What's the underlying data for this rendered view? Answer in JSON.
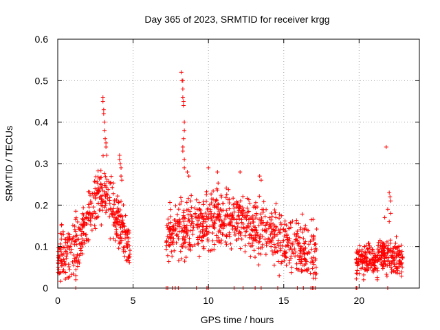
{
  "chart_data": {
    "type": "scatter",
    "title": "Day 365 of 2023, SRMTID for receiver krgg",
    "xlabel": "GPS time / hours",
    "ylabel": "SRMTID / TECUs",
    "xlim": [
      0,
      24
    ],
    "ylim": [
      0,
      0.6
    ],
    "xticks": [
      0,
      5,
      10,
      15,
      20
    ],
    "yticks": [
      0,
      0.1,
      0.2,
      0.3,
      0.4,
      0.5,
      0.6
    ],
    "grid": true,
    "marker": "+",
    "colors": {
      "points": "#ff0000",
      "grid": "#a0a0a0",
      "frame": "#000000"
    },
    "segments": [
      {
        "x_start": 0.0,
        "x_end": 4.8,
        "profile": [
          [
            0.0,
            0.08
          ],
          [
            0.6,
            0.08
          ],
          [
            1.2,
            0.1
          ],
          [
            1.8,
            0.14
          ],
          [
            2.4,
            0.2
          ],
          [
            3.0,
            0.24
          ],
          [
            3.6,
            0.2
          ],
          [
            4.2,
            0.15
          ],
          [
            4.8,
            0.09
          ]
        ],
        "spread": 0.05,
        "count": 420
      },
      {
        "x_start": 7.2,
        "x_end": 17.2,
        "profile": [
          [
            7.2,
            0.12
          ],
          [
            8.0,
            0.14
          ],
          [
            9.0,
            0.15
          ],
          [
            10.0,
            0.16
          ],
          [
            11.0,
            0.17
          ],
          [
            12.0,
            0.16
          ],
          [
            13.0,
            0.15
          ],
          [
            14.0,
            0.13
          ],
          [
            15.0,
            0.12
          ],
          [
            16.0,
            0.1
          ],
          [
            17.2,
            0.08
          ]
        ],
        "spread": 0.05,
        "count": 780
      },
      {
        "x_start": 19.8,
        "x_end": 22.9,
        "profile": [
          [
            19.8,
            0.06
          ],
          [
            20.5,
            0.07
          ],
          [
            21.0,
            0.07
          ],
          [
            21.5,
            0.08
          ],
          [
            22.0,
            0.08
          ],
          [
            22.9,
            0.07
          ]
        ],
        "spread": 0.03,
        "count": 300
      }
    ],
    "extra_points": [
      [
        3.0,
        0.46
      ],
      [
        3.0,
        0.45
      ],
      [
        3.05,
        0.43
      ],
      [
        3.05,
        0.42
      ],
      [
        3.1,
        0.4
      ],
      [
        3.1,
        0.38
      ],
      [
        3.15,
        0.36
      ],
      [
        3.2,
        0.35
      ],
      [
        3.2,
        0.34
      ],
      [
        3.25,
        0.32
      ],
      [
        4.1,
        0.32
      ],
      [
        4.1,
        0.31
      ],
      [
        4.15,
        0.3
      ],
      [
        4.2,
        0.29
      ],
      [
        4.2,
        0.27
      ],
      [
        4.25,
        0.26
      ],
      [
        8.2,
        0.52
      ],
      [
        8.25,
        0.5
      ],
      [
        8.3,
        0.5
      ],
      [
        8.3,
        0.48
      ],
      [
        8.3,
        0.46
      ],
      [
        8.35,
        0.45
      ],
      [
        8.35,
        0.44
      ],
      [
        8.4,
        0.4
      ],
      [
        8.4,
        0.38
      ],
      [
        8.35,
        0.36
      ],
      [
        8.3,
        0.34
      ],
      [
        8.3,
        0.33
      ],
      [
        8.4,
        0.31
      ],
      [
        8.4,
        0.29
      ],
      [
        8.6,
        0.28
      ],
      [
        8.7,
        0.27
      ],
      [
        10.0,
        0.29
      ],
      [
        10.6,
        0.28
      ],
      [
        12.1,
        0.28
      ],
      [
        13.4,
        0.27
      ],
      [
        13.5,
        0.26
      ],
      [
        21.8,
        0.34
      ],
      [
        22.0,
        0.23
      ],
      [
        22.05,
        0.22
      ],
      [
        22.1,
        0.21
      ],
      [
        21.9,
        0.19
      ],
      [
        22.1,
        0.18
      ],
      [
        21.7,
        0.17
      ],
      [
        22.0,
        0.16
      ],
      [
        14.7,
        0.03
      ],
      [
        1.2,
        0.02
      ],
      [
        1.2,
        0.03
      ],
      [
        21.2,
        0.02
      ],
      [
        20.3,
        0.02
      ]
    ],
    "zero_points": [
      1.2,
      7.2,
      7.3,
      7.6,
      7.8,
      8.0,
      9.2,
      9.9,
      10.0,
      11.7,
      12.3,
      13.1,
      13.5,
      14.6,
      15.9,
      16.3,
      16.8,
      16.9,
      17.0,
      17.1,
      19.8,
      19.85,
      21.9
    ]
  }
}
